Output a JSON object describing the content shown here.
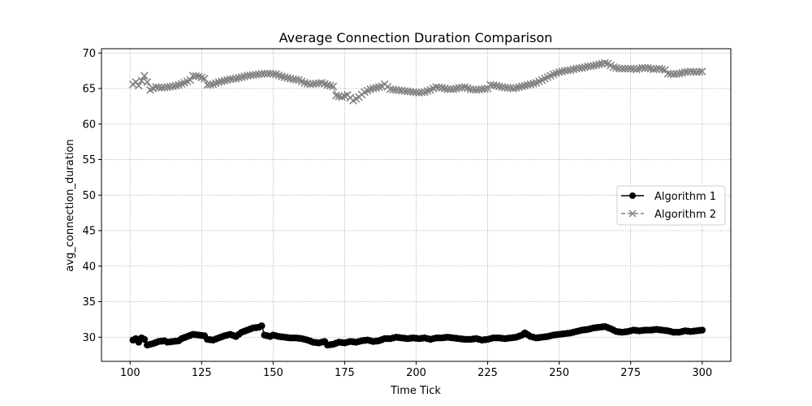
{
  "chart_data": {
    "type": "line",
    "title": "Average Connection Duration Comparison",
    "xlabel": "Time Tick",
    "ylabel": "avg_connection_duration",
    "xlim": [
      90,
      310
    ],
    "ylim": [
      26.6,
      70.6
    ],
    "xticks": [
      100,
      125,
      150,
      175,
      200,
      225,
      250,
      275,
      300
    ],
    "yticks": [
      30,
      35,
      40,
      45,
      50,
      55,
      60,
      65,
      70
    ],
    "grid": true,
    "legend_position": "center-right",
    "series": [
      {
        "name": "Algorithm 1",
        "color": "#000000",
        "marker": "circle",
        "linestyle": "solid",
        "anchors": [
          [
            101,
            29.6
          ],
          [
            102,
            29.8
          ],
          [
            103,
            29.3
          ],
          [
            104,
            29.9
          ],
          [
            105,
            29.7
          ],
          [
            106,
            28.9
          ],
          [
            107,
            29.0
          ],
          [
            108,
            29.1
          ],
          [
            110,
            29.4
          ],
          [
            112,
            29.5
          ],
          [
            113,
            29.3
          ],
          [
            115,
            29.4
          ],
          [
            117,
            29.5
          ],
          [
            118,
            29.8
          ],
          [
            120,
            30.1
          ],
          [
            122,
            30.4
          ],
          [
            124,
            30.3
          ],
          [
            126,
            30.2
          ],
          [
            127,
            29.7
          ],
          [
            129,
            29.6
          ],
          [
            131,
            29.9
          ],
          [
            133,
            30.2
          ],
          [
            135,
            30.4
          ],
          [
            137,
            30.1
          ],
          [
            139,
            30.7
          ],
          [
            141,
            31.0
          ],
          [
            143,
            31.3
          ],
          [
            145,
            31.4
          ],
          [
            146,
            31.6
          ],
          [
            147,
            30.3
          ],
          [
            149,
            30.1
          ],
          [
            150,
            30.3
          ],
          [
            152,
            30.1
          ],
          [
            154,
            30.0
          ],
          [
            156,
            29.9
          ],
          [
            158,
            29.9
          ],
          [
            160,
            29.8
          ],
          [
            162,
            29.6
          ],
          [
            164,
            29.3
          ],
          [
            166,
            29.2
          ],
          [
            168,
            29.4
          ],
          [
            169,
            28.9
          ],
          [
            171,
            29.0
          ],
          [
            173,
            29.3
          ],
          [
            175,
            29.2
          ],
          [
            177,
            29.4
          ],
          [
            179,
            29.3
          ],
          [
            181,
            29.5
          ],
          [
            183,
            29.6
          ],
          [
            185,
            29.4
          ],
          [
            187,
            29.5
          ],
          [
            189,
            29.8
          ],
          [
            191,
            29.8
          ],
          [
            193,
            30.0
          ],
          [
            195,
            29.9
          ],
          [
            197,
            29.8
          ],
          [
            199,
            29.9
          ],
          [
            201,
            29.8
          ],
          [
            203,
            29.9
          ],
          [
            205,
            29.7
          ],
          [
            207,
            29.9
          ],
          [
            209,
            29.9
          ],
          [
            211,
            30.0
          ],
          [
            213,
            29.9
          ],
          [
            215,
            29.8
          ],
          [
            217,
            29.7
          ],
          [
            219,
            29.7
          ],
          [
            221,
            29.8
          ],
          [
            223,
            29.6
          ],
          [
            225,
            29.7
          ],
          [
            227,
            29.9
          ],
          [
            229,
            29.9
          ],
          [
            231,
            29.8
          ],
          [
            233,
            29.9
          ],
          [
            235,
            30.0
          ],
          [
            237,
            30.3
          ],
          [
            238,
            30.6
          ],
          [
            240,
            30.1
          ],
          [
            242,
            29.9
          ],
          [
            244,
            30.0
          ],
          [
            246,
            30.1
          ],
          [
            248,
            30.3
          ],
          [
            250,
            30.4
          ],
          [
            252,
            30.5
          ],
          [
            254,
            30.6
          ],
          [
            256,
            30.8
          ],
          [
            258,
            31.0
          ],
          [
            260,
            31.1
          ],
          [
            262,
            31.3
          ],
          [
            264,
            31.4
          ],
          [
            266,
            31.5
          ],
          [
            268,
            31.2
          ],
          [
            270,
            30.8
          ],
          [
            272,
            30.7
          ],
          [
            274,
            30.8
          ],
          [
            276,
            31.0
          ],
          [
            278,
            30.9
          ],
          [
            280,
            31.0
          ],
          [
            282,
            31.0
          ],
          [
            284,
            31.1
          ],
          [
            286,
            31.0
          ],
          [
            288,
            30.9
          ],
          [
            290,
            30.7
          ],
          [
            292,
            30.7
          ],
          [
            294,
            30.9
          ],
          [
            296,
            30.8
          ],
          [
            298,
            30.9
          ],
          [
            300,
            31.0
          ]
        ]
      },
      {
        "name": "Algorithm 2",
        "color": "#808080",
        "marker": "x",
        "linestyle": "dashed",
        "anchors": [
          [
            101,
            65.6
          ],
          [
            102,
            65.9
          ],
          [
            103,
            65.4
          ],
          [
            104,
            66.1
          ],
          [
            105,
            66.8
          ],
          [
            106,
            65.9
          ],
          [
            107,
            64.8
          ],
          [
            108,
            65.0
          ],
          [
            109,
            65.2
          ],
          [
            111,
            65.1
          ],
          [
            113,
            65.2
          ],
          [
            115,
            65.3
          ],
          [
            117,
            65.5
          ],
          [
            119,
            65.8
          ],
          [
            121,
            66.2
          ],
          [
            122,
            66.8
          ],
          [
            124,
            66.7
          ],
          [
            126,
            66.4
          ],
          [
            127,
            65.5
          ],
          [
            129,
            65.6
          ],
          [
            131,
            65.9
          ],
          [
            133,
            66.1
          ],
          [
            135,
            66.3
          ],
          [
            137,
            66.4
          ],
          [
            139,
            66.6
          ],
          [
            141,
            66.8
          ],
          [
            143,
            66.9
          ],
          [
            145,
            67.0
          ],
          [
            147,
            67.1
          ],
          [
            149,
            67.1
          ],
          [
            151,
            67.0
          ],
          [
            153,
            66.7
          ],
          [
            155,
            66.5
          ],
          [
            157,
            66.3
          ],
          [
            159,
            66.2
          ],
          [
            161,
            65.8
          ],
          [
            163,
            65.6
          ],
          [
            165,
            65.7
          ],
          [
            167,
            65.8
          ],
          [
            169,
            65.5
          ],
          [
            171,
            65.3
          ],
          [
            172,
            64.0
          ],
          [
            174,
            63.8
          ],
          [
            176,
            64.1
          ],
          [
            178,
            63.3
          ],
          [
            180,
            63.8
          ],
          [
            182,
            64.5
          ],
          [
            184,
            64.9
          ],
          [
            186,
            65.1
          ],
          [
            188,
            65.3
          ],
          [
            189,
            65.6
          ],
          [
            191,
            64.9
          ],
          [
            193,
            64.8
          ],
          [
            195,
            64.7
          ],
          [
            197,
            64.6
          ],
          [
            199,
            64.5
          ],
          [
            201,
            64.4
          ],
          [
            203,
            64.5
          ],
          [
            205,
            64.8
          ],
          [
            207,
            65.2
          ],
          [
            209,
            65.1
          ],
          [
            211,
            64.9
          ],
          [
            213,
            64.9
          ],
          [
            215,
            65.1
          ],
          [
            217,
            65.2
          ],
          [
            219,
            64.9
          ],
          [
            221,
            64.8
          ],
          [
            223,
            64.9
          ],
          [
            225,
            65.0
          ],
          [
            226,
            65.5
          ],
          [
            228,
            65.4
          ],
          [
            230,
            65.2
          ],
          [
            232,
            65.1
          ],
          [
            234,
            65.0
          ],
          [
            236,
            65.2
          ],
          [
            238,
            65.4
          ],
          [
            240,
            65.6
          ],
          [
            242,
            65.8
          ],
          [
            244,
            66.2
          ],
          [
            246,
            66.6
          ],
          [
            248,
            67.0
          ],
          [
            250,
            67.3
          ],
          [
            252,
            67.5
          ],
          [
            254,
            67.6
          ],
          [
            256,
            67.8
          ],
          [
            258,
            67.9
          ],
          [
            260,
            68.1
          ],
          [
            262,
            68.2
          ],
          [
            264,
            68.4
          ],
          [
            266,
            68.6
          ],
          [
            267,
            68.5
          ],
          [
            269,
            68.0
          ],
          [
            271,
            67.8
          ],
          [
            273,
            67.8
          ],
          [
            275,
            67.8
          ],
          [
            277,
            67.7
          ],
          [
            279,
            67.9
          ],
          [
            281,
            67.9
          ],
          [
            283,
            67.7
          ],
          [
            285,
            67.8
          ],
          [
            287,
            67.6
          ],
          [
            288,
            67.1
          ],
          [
            290,
            67.0
          ],
          [
            292,
            67.1
          ],
          [
            294,
            67.3
          ],
          [
            296,
            67.4
          ],
          [
            298,
            67.3
          ],
          [
            300,
            67.4
          ]
        ]
      }
    ]
  }
}
